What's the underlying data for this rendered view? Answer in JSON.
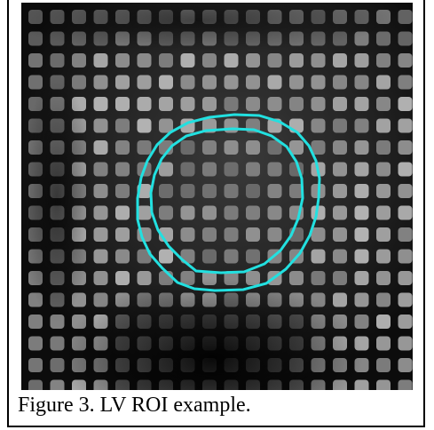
{
  "figure": {
    "caption": "Figure 3. LV ROI example.",
    "contour_color": "#22e0e0",
    "background_color": "#0d0d0d",
    "grid_dot_color": "#8c8c8c"
  }
}
